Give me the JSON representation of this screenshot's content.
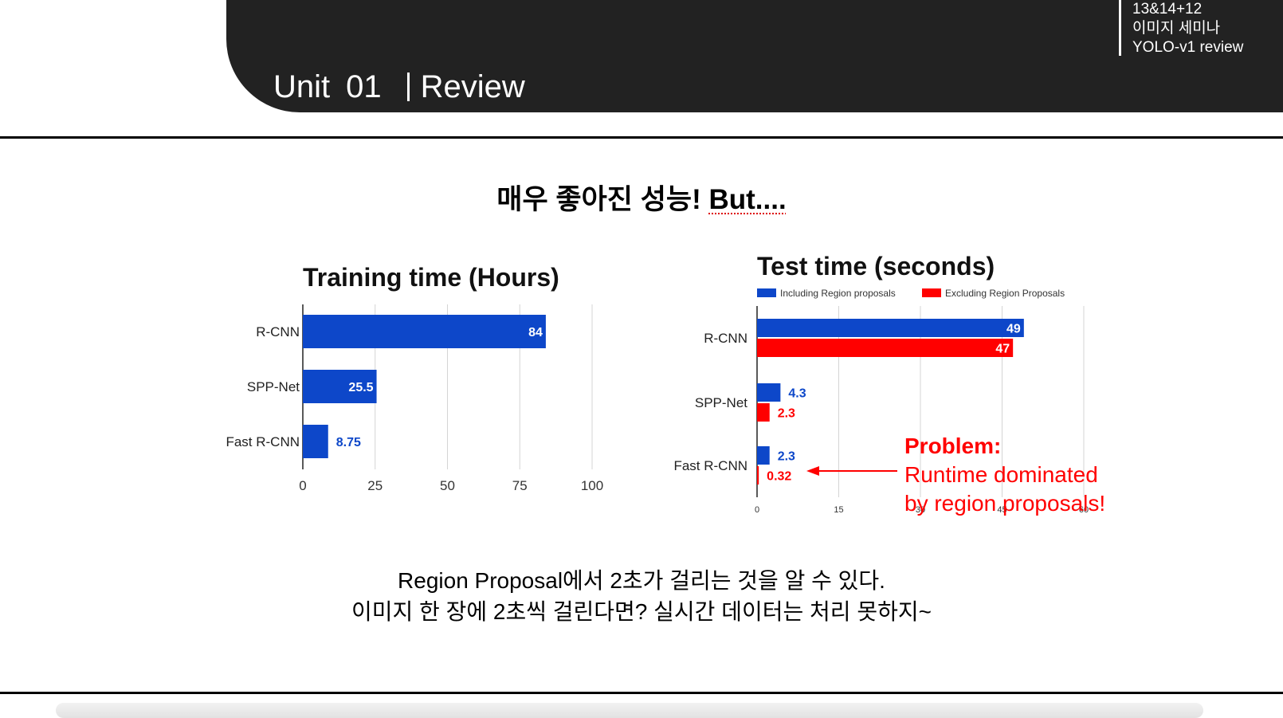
{
  "header": {
    "unit_label": "Unit",
    "unit_number": "01",
    "section_title": "Review",
    "meta_lines": [
      "13&14+12",
      "이미지 세미나",
      "YOLO-v1 review"
    ]
  },
  "slide": {
    "heading_prefix": "매우 좋아진 성능! ",
    "heading_emphasis": "But....",
    "caption_line1": "Region Proposal에서 2초가 걸리는 것을 알 수 있다.",
    "caption_line2": "이미지 한 장에 2초씩 걸린다면? 실시간 데이터는 처리 못하지~"
  },
  "colors": {
    "header_background": "#222222",
    "blue": "#0d47c9",
    "red": "#ff0000"
  },
  "chart_data": [
    {
      "type": "bar",
      "orientation": "horizontal",
      "title": "Training time (Hours)",
      "categories": [
        "R-CNN",
        "SPP-Net",
        "Fast R-CNN"
      ],
      "values": [
        84,
        25.5,
        8.75
      ],
      "value_labels": [
        "84",
        "25.5",
        "8.75"
      ],
      "xlim": [
        0,
        100
      ],
      "xticks": [
        "0",
        "25",
        "50",
        "75",
        "100"
      ],
      "grid": true,
      "color": "#0d47c9"
    },
    {
      "type": "bar",
      "orientation": "horizontal",
      "title": "Test time (seconds)",
      "categories": [
        "R-CNN",
        "SPP-Net",
        "Fast R-CNN"
      ],
      "series": [
        {
          "name": "Including Region proposals",
          "values": [
            49,
            4.3,
            2.3
          ],
          "labels": [
            "49",
            "4.3",
            "2.3"
          ],
          "color": "#0d47c9"
        },
        {
          "name": "Excluding Region Proposals",
          "values": [
            47,
            2.3,
            0.32
          ],
          "labels": [
            "47",
            "2.3",
            "0.32"
          ],
          "color": "#ff0000"
        }
      ],
      "xlim": [
        0,
        60
      ],
      "xticks": [
        "0",
        "15",
        "30",
        "45",
        "60"
      ],
      "grid": true,
      "legend_position": "top",
      "annotation": {
        "title": "Problem:",
        "lines": [
          "Runtime dominated",
          "by region proposals!"
        ],
        "points_to": "Fast R-CNN",
        "color": "#ff0000"
      }
    }
  ]
}
